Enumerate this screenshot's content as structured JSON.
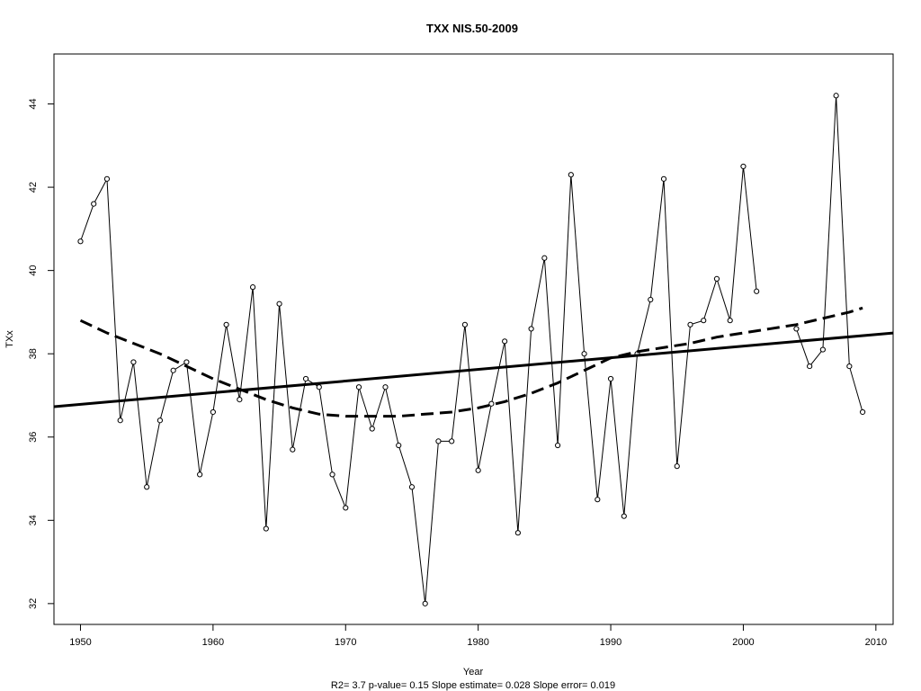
{
  "chart_data": {
    "type": "line",
    "title": "TXX   NIS.50-2009",
    "xlabel": "Year",
    "ylabel": "TXx",
    "footer": "R2= 3.7  p-value= 0.15  Slope estimate= 0.028  Slope error= 0.019",
    "xlim": [
      1948,
      2011.3
    ],
    "ylim": [
      31.5,
      45.2
    ],
    "x_ticks": [
      1950,
      1960,
      1970,
      1980,
      1990,
      2000,
      2010
    ],
    "y_ticks": [
      32,
      34,
      36,
      38,
      40,
      42,
      44
    ],
    "grid": false,
    "legend": "none",
    "series": [
      {
        "style": "line-points",
        "x": [
          1950,
          1951,
          1952,
          1953,
          1954,
          1955,
          1956,
          1957,
          1958,
          1959,
          1960,
          1961,
          1962,
          1963,
          1964,
          1965,
          1966,
          1967,
          1968,
          1969,
          1970,
          1971,
          1972,
          1973,
          1974,
          1975,
          1976,
          1977,
          1978,
          1979,
          1980,
          1981,
          1982,
          1983,
          1984,
          1985,
          1986,
          1987,
          1988,
          1989,
          1990,
          1991,
          1992,
          1993,
          1994,
          1995,
          1996,
          1997,
          1998,
          1999,
          2000,
          2001,
          2002,
          2003,
          2004,
          2005,
          2006,
          2007,
          2008,
          2009
        ],
        "values": [
          40.7,
          41.6,
          42.2,
          36.4,
          37.8,
          34.8,
          36.4,
          37.6,
          37.8,
          35.1,
          36.6,
          38.7,
          36.9,
          39.6,
          33.8,
          39.2,
          35.7,
          37.4,
          37.2,
          35.1,
          34.3,
          37.2,
          36.2,
          37.2,
          35.8,
          34.8,
          32.0,
          35.9,
          35.9,
          38.7,
          35.2,
          36.8,
          38.3,
          33.7,
          38.6,
          40.3,
          35.8,
          42.3,
          38.0,
          34.5,
          37.4,
          34.1,
          38.0,
          39.3,
          42.2,
          35.3,
          38.7,
          38.8,
          39.8,
          38.8,
          42.5,
          39.5,
          null,
          null,
          38.6,
          37.7,
          38.1,
          44.2,
          37.7,
          36.6
        ]
      },
      {
        "style": "regression-line",
        "x": [
          1948,
          2011.3
        ],
        "values": [
          36.73,
          38.5
        ]
      },
      {
        "style": "dashed-smooth",
        "x": [
          1950,
          1952,
          1954,
          1956,
          1958,
          1960,
          1962,
          1964,
          1966,
          1968,
          1970,
          1972,
          1974,
          1976,
          1978,
          1980,
          1982,
          1984,
          1986,
          1988,
          1990,
          1992,
          1994,
          1996,
          1998,
          2000,
          2002,
          2004,
          2006,
          2008,
          2009
        ],
        "values": [
          38.8,
          38.5,
          38.25,
          38.0,
          37.7,
          37.4,
          37.15,
          36.9,
          36.7,
          36.55,
          36.5,
          36.5,
          36.5,
          36.55,
          36.6,
          36.7,
          36.85,
          37.05,
          37.3,
          37.6,
          37.9,
          38.05,
          38.15,
          38.25,
          38.4,
          38.5,
          38.6,
          38.7,
          38.85,
          39.0,
          39.1
        ]
      }
    ]
  }
}
